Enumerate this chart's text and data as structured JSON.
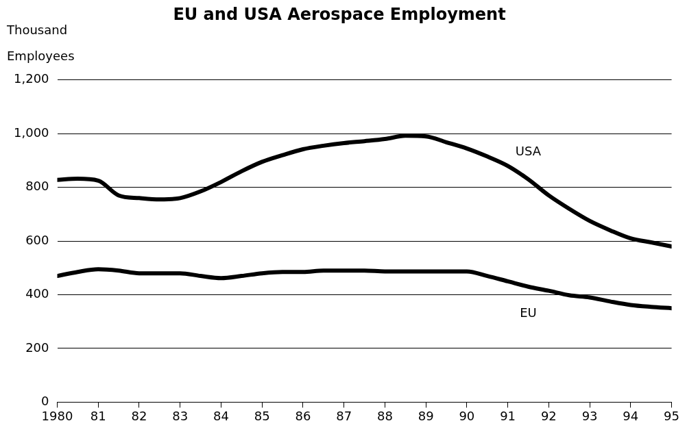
{
  "chart_data": {
    "type": "line",
    "title": "EU and USA Aerospace Employment",
    "ylabel": "Thousand Employees",
    "x": [
      1980,
      1980.5,
      1981,
      1981.5,
      1982,
      1982.5,
      1983,
      1983.5,
      1984,
      1984.5,
      1985,
      1985.5,
      1986,
      1986.5,
      1987,
      1987.5,
      1988,
      1988.5,
      1989,
      1989.5,
      1990,
      1990.5,
      1991,
      1991.5,
      1992,
      1992.5,
      1993,
      1993.5,
      1994,
      1994.5,
      1995
    ],
    "series": [
      {
        "name": "USA",
        "color": "#000000",
        "values": [
          828,
          832,
          825,
          770,
          760,
          755,
          760,
          785,
          820,
          860,
          895,
          920,
          942,
          955,
          965,
          972,
          980,
          992,
          990,
          968,
          945,
          915,
          880,
          830,
          770,
          720,
          675,
          640,
          610,
          595,
          580
        ]
      },
      {
        "name": "EU",
        "color": "#000000",
        "values": [
          470,
          485,
          495,
          490,
          480,
          480,
          480,
          470,
          462,
          470,
          480,
          485,
          485,
          490,
          490,
          490,
          487,
          487,
          487,
          487,
          487,
          470,
          450,
          430,
          415,
          398,
          390,
          375,
          362,
          355,
          350
        ]
      }
    ],
    "xlim": [
      1980,
      1995
    ],
    "xticks": [
      1980,
      {
        "value": 1981,
        "label": "81"
      },
      {
        "value": 1982,
        "label": "82"
      },
      {
        "value": 1983,
        "label": "83"
      },
      {
        "value": 1984,
        "label": "84"
      },
      {
        "value": 1985,
        "label": "85"
      },
      {
        "value": 1986,
        "label": "86"
      },
      {
        "value": 1987,
        "label": "87"
      },
      {
        "value": 1988,
        "label": "88"
      },
      {
        "value": 1989,
        "label": "89"
      },
      {
        "value": 1990,
        "label": "90"
      },
      {
        "value": 1991,
        "label": "91"
      },
      {
        "value": 1992,
        "label": "92"
      },
      {
        "value": 1993,
        "label": "93"
      },
      {
        "value": 1994,
        "label": "94"
      },
      {
        "value": 1995,
        "label": "95"
      }
    ],
    "ylim": [
      0,
      1200
    ],
    "yticks": [
      0,
      {
        "value": 200,
        "label": "200"
      },
      {
        "value": 400,
        "label": "400"
      },
      {
        "value": 600,
        "label": "600"
      },
      {
        "value": 800,
        "label": "800"
      },
      {
        "value": 1000,
        "label": "1,000"
      },
      {
        "value": 1200,
        "label": "1,200"
      }
    ],
    "grid": "y",
    "legend": false,
    "marker": "none",
    "line_style": "solid"
  }
}
